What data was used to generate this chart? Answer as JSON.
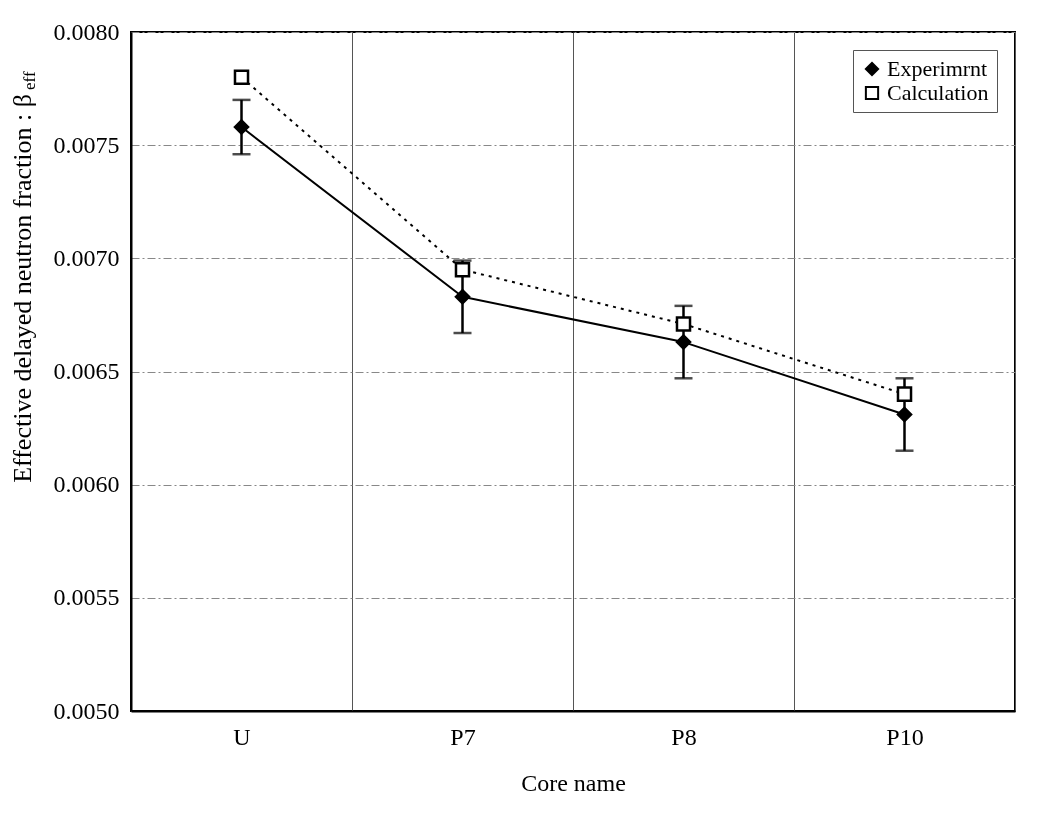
{
  "chart_data": {
    "type": "line",
    "xlabel": "Core name",
    "ylabel": "Effective delayed neutron fraction : β$_{eff}$",
    "categories": [
      "U",
      "P7",
      "P8",
      "P10"
    ],
    "series": [
      {
        "name": "Experimrnt",
        "color": "#000000",
        "marker": "diamond",
        "line_style": "solid",
        "values": [
          0.00758,
          0.00683,
          0.00663,
          0.00631
        ],
        "errors": [
          [
            0.00746,
            0.0077
          ],
          [
            0.00667,
            0.00699
          ],
          [
            0.00647,
            0.00679
          ],
          [
            0.00615,
            0.00647
          ]
        ]
      },
      {
        "name": "Calculation",
        "color": "#000000",
        "marker": "square",
        "line_style": "dotted",
        "values": [
          0.0078,
          0.00695,
          0.00671,
          0.0064
        ]
      }
    ],
    "ylim": [
      0.005,
      0.008
    ],
    "yticks": [
      {
        "value": 0.005,
        "label": "0.0050"
      },
      {
        "value": 0.0055,
        "label": "0.0055"
      },
      {
        "value": 0.006,
        "label": "0.0060"
      },
      {
        "value": 0.0065,
        "label": "0.0065"
      },
      {
        "value": 0.007,
        "label": "0.0070"
      },
      {
        "value": 0.0075,
        "label": "0.0075"
      },
      {
        "value": 0.008,
        "label": "0.0080"
      }
    ],
    "grid": true,
    "legend": "top right"
  }
}
